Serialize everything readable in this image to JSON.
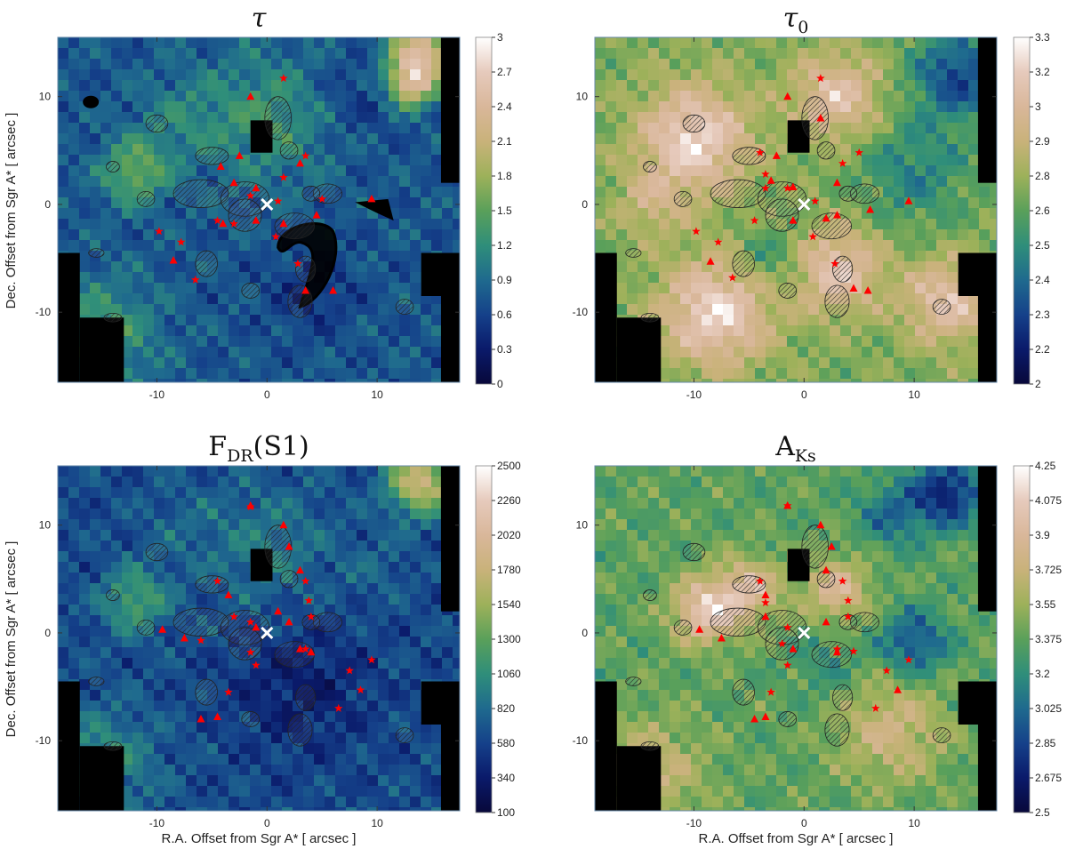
{
  "figure": {
    "axis_labels": {
      "ylabel": "Dec. Offset from Sgr A* [ arcsec ]",
      "xlabel": "R.A. Offset from Sgr A* [ arcsec ]"
    },
    "colors": {
      "colormap": [
        "#08083a",
        "#0a1a6a",
        "#15418a",
        "#1f6a8e",
        "#2f8e7a",
        "#5aa05a",
        "#9db15a",
        "#c9b27a",
        "#d9b79a",
        "#e6cabc",
        "#ffffff"
      ],
      "source_marker": "#ff0000",
      "center_marker": "#ffffff",
      "mask": "#000000"
    }
  },
  "chart_data": [
    {
      "type": "heatmap",
      "id": "tau",
      "title": "τ",
      "colorbar": {
        "ticks": [
          "3",
          "2.7",
          "2.4",
          "2.1",
          "1.8",
          "1.5",
          "1.2",
          "0.9",
          "0.6",
          "0.3",
          "0"
        ],
        "range": [
          0,
          3
        ]
      },
      "xlim": [
        -19,
        17.5
      ],
      "ylim": [
        -16.5,
        15.5
      ],
      "x_ticks": [
        "-10",
        "0",
        "10"
      ],
      "y_ticks": [
        "10",
        "0",
        "-10"
      ],
      "center": [
        0,
        0
      ],
      "stars": [
        [
          1.5,
          11.7
        ],
        [
          -9.8,
          -2.5
        ],
        [
          -7.8,
          -3.5
        ],
        [
          -6.5,
          -7
        ],
        [
          -4.5,
          -1.5
        ],
        [
          -1.5,
          0.8
        ],
        [
          1,
          0.3
        ],
        [
          1.5,
          2.5
        ],
        [
          3.5,
          4.5
        ],
        [
          5,
          0.5
        ],
        [
          2.8,
          -5.5
        ],
        [
          0.8,
          -3
        ],
        [
          -3,
          -1.8
        ]
      ],
      "triangles": [
        [
          -1.5,
          10
        ],
        [
          -2.5,
          4.5
        ],
        [
          -4.2,
          3.5
        ],
        [
          -3,
          2
        ],
        [
          -1,
          1.5
        ],
        [
          3,
          3.8
        ],
        [
          4.5,
          -1
        ],
        [
          9.5,
          0.5
        ],
        [
          -8.5,
          -5.2
        ],
        [
          3.5,
          -8
        ],
        [
          6,
          -8
        ],
        [
          -1,
          -1.5
        ],
        [
          -4,
          -1.8
        ],
        [
          1.5,
          -1.8
        ]
      ]
    },
    {
      "type": "heatmap",
      "id": "tau0",
      "title": "τ₀",
      "colorbar": {
        "ticks": [
          "3.3",
          "3.2",
          "3",
          "2.9",
          "2.8",
          "2.6",
          "2.5",
          "2.4",
          "2.3",
          "2.2",
          "2"
        ],
        "range": [
          2,
          3.3
        ]
      },
      "xlim": [
        -19,
        17.5
      ],
      "ylim": [
        -16.5,
        15.5
      ],
      "x_ticks": [
        "-10",
        "0",
        "10"
      ],
      "y_ticks": [
        "10",
        "0",
        "-10"
      ],
      "center": [
        0,
        0
      ],
      "stars": [
        [
          1.5,
          11.7
        ],
        [
          -4,
          4.8
        ],
        [
          -3.5,
          2.8
        ],
        [
          -3.5,
          1.5
        ],
        [
          -1.5,
          1.5
        ],
        [
          3.5,
          3.8
        ],
        [
          5,
          4.8
        ],
        [
          -9.8,
          -2.5
        ],
        [
          -7.8,
          -3.5
        ],
        [
          -6.5,
          -6.8
        ],
        [
          -4.5,
          -1.5
        ],
        [
          0.8,
          -3
        ],
        [
          1,
          0.3
        ],
        [
          2.8,
          -5.5
        ]
      ],
      "triangles": [
        [
          -1.5,
          10
        ],
        [
          -2.5,
          4.5
        ],
        [
          -3,
          2.2
        ],
        [
          -1,
          1.6
        ],
        [
          1.5,
          8
        ],
        [
          3,
          2
        ],
        [
          6,
          -0.5
        ],
        [
          9.5,
          0.3
        ],
        [
          -8.5,
          -5.3
        ],
        [
          4.5,
          -7.8
        ],
        [
          5.8,
          -8
        ],
        [
          -1,
          -1.5
        ],
        [
          2,
          -1.3
        ],
        [
          3,
          -1
        ]
      ]
    },
    {
      "type": "heatmap",
      "id": "fdr",
      "title": "F<sub>DR</sub>(S1)",
      "title_plain": "FDR(S1)",
      "colorbar": {
        "ticks": [
          "2500",
          "2260",
          "2020",
          "1780",
          "1540",
          "1300",
          "1060",
          "820",
          "580",
          "340",
          "100"
        ],
        "range": [
          100,
          2500
        ]
      },
      "xlim": [
        -19,
        17.5
      ],
      "ylim": [
        -16.5,
        15.5
      ],
      "x_ticks": [
        "-10",
        "0",
        "10"
      ],
      "y_ticks": [
        "10",
        "0",
        "-10"
      ],
      "center": [
        0,
        0
      ],
      "stars": [
        [
          -1.5,
          11.7
        ],
        [
          -4.5,
          4.8
        ],
        [
          -3,
          1.5
        ],
        [
          -1.5,
          1
        ],
        [
          3.5,
          4.8
        ],
        [
          3.8,
          3
        ],
        [
          4,
          1.5
        ],
        [
          -6,
          -0.7
        ],
        [
          -3.5,
          -5.5
        ],
        [
          -1.5,
          -1.8
        ],
        [
          -1,
          -3
        ],
        [
          3.5,
          -1.5
        ],
        [
          7.5,
          -3.5
        ],
        [
          8.5,
          -5.3
        ],
        [
          9.5,
          -2.5
        ],
        [
          6.5,
          -7
        ]
      ],
      "triangles": [
        [
          -1.5,
          11.8
        ],
        [
          1.5,
          10
        ],
        [
          2,
          8
        ],
        [
          3,
          5.8
        ],
        [
          -3.5,
          3.5
        ],
        [
          -9.5,
          0.3
        ],
        [
          -7.5,
          -0.5
        ],
        [
          -6,
          -8
        ],
        [
          -4.5,
          -7.8
        ],
        [
          1,
          2
        ],
        [
          2,
          1
        ],
        [
          -1,
          0.5
        ],
        [
          3,
          -1.5
        ],
        [
          4,
          -1.8
        ]
      ]
    },
    {
      "type": "heatmap",
      "id": "aks",
      "title": "A<sub>Ks</sub>",
      "title_plain": "AKs",
      "colorbar": {
        "ticks": [
          "4.25",
          "4.075",
          "3.9",
          "3.725",
          "3.55",
          "3.375",
          "3.2",
          "3.025",
          "2.85",
          "2.675",
          "2.5"
        ],
        "range": [
          2.5,
          4.25
        ]
      },
      "xlim": [
        -19,
        17.5
      ],
      "ylim": [
        -16.5,
        15.5
      ],
      "x_ticks": [
        "-10",
        "0",
        "10"
      ],
      "y_ticks": [
        "10",
        "0",
        "-10"
      ],
      "center": [
        0,
        0
      ],
      "stars": [
        [
          -1.5,
          11.8
        ],
        [
          -4,
          4.8
        ],
        [
          -3.5,
          2.8
        ],
        [
          3.5,
          4.8
        ],
        [
          4,
          3
        ],
        [
          4,
          1.5
        ],
        [
          -1.5,
          0.5
        ],
        [
          -2,
          -1
        ],
        [
          -1.5,
          -3
        ],
        [
          3,
          -1.5
        ],
        [
          4.5,
          -1.7
        ],
        [
          7.5,
          -3.5
        ],
        [
          9.5,
          -2.5
        ],
        [
          -3,
          -5.5
        ],
        [
          6.5,
          -7
        ]
      ],
      "triangles": [
        [
          -1.5,
          11.8
        ],
        [
          1.5,
          10
        ],
        [
          2.5,
          8
        ],
        [
          2,
          5.8
        ],
        [
          -3.5,
          3.5
        ],
        [
          -9.5,
          0.3
        ],
        [
          -7.5,
          -0.5
        ],
        [
          -4.5,
          -8
        ],
        [
          -3.5,
          -7.8
        ],
        [
          -3.5,
          1.5
        ],
        [
          2,
          1
        ],
        [
          3,
          -1.8
        ],
        [
          8.5,
          -5.3
        ],
        [
          -1,
          -1.5
        ]
      ]
    }
  ]
}
